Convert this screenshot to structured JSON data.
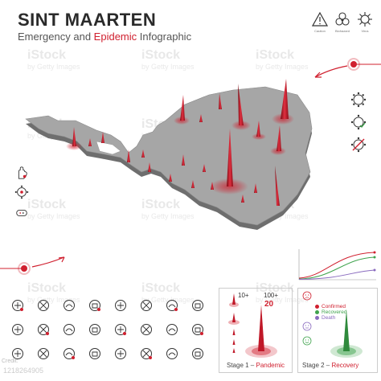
{
  "header": {
    "title": "SINT MAARTEN",
    "subtitle_before": "Emergency and ",
    "subtitle_accent": "Epidemic",
    "subtitle_after": " Infographic"
  },
  "watermark": {
    "brand": "iStock",
    "tagline": "by Getty Images",
    "credit": "Credit:",
    "id": "1218264905"
  },
  "top_icons": [
    {
      "name": "warning-icon",
      "label": "Caution"
    },
    {
      "name": "biohazard-icon",
      "label": "Biohazard"
    },
    {
      "name": "virus-icon",
      "label": "Virus"
    }
  ],
  "stage1": {
    "label_prefix": "Stage 1 – ",
    "label_accent": "Pandemic",
    "count_small": "10+",
    "count_large": "100+",
    "count_large_value": "20"
  },
  "stage2": {
    "label_prefix": "Stage 2 – ",
    "label_accent": "Recovery",
    "legend": [
      {
        "label": "Confirmed",
        "color": "#d0202f"
      },
      {
        "label": "Recovered",
        "color": "#3fa34d"
      },
      {
        "label": "Death",
        "color": "#8a6bbf"
      }
    ]
  },
  "grid_icons": [
    "cough-icon",
    "virus-icon",
    "bacteria-icon",
    "no-touch-icon",
    "bat-icon",
    "hand-icon",
    "eye-icon",
    "no-flight-icon",
    "bat-icon",
    "microbe-icon",
    "virus-icon",
    "people-icon",
    "cough-icon",
    "no-handshake-icon",
    "calendar-icon",
    "flight-icon",
    "hand-wash-icon",
    "home-icon",
    "doctor-icon",
    "group-icon",
    "target-icon",
    "head-icon",
    "mask-icon",
    "document-icon"
  ],
  "colors": {
    "accent": "#d0202f",
    "map": "#9a9a9a",
    "map_dark": "#6e6e6e",
    "recovered": "#3fa34d"
  }
}
